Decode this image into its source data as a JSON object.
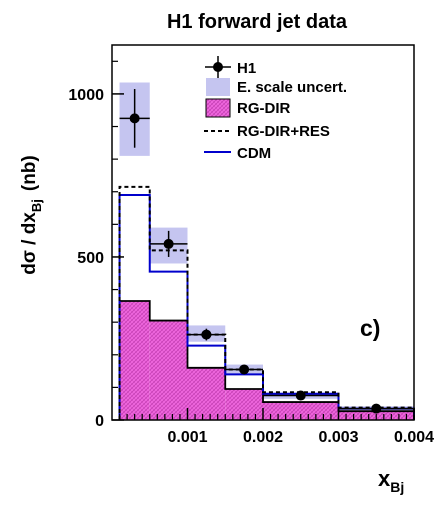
{
  "chart_data": {
    "type": "histogram",
    "title": "H1 forward jet data",
    "ylabel_main": "dσ / dx",
    "ylabel_sub": "Bj",
    "ylabel_unit": "(nb)",
    "xlabel_main": "x",
    "xlabel_sub": "Bj",
    "panel_label": "c)",
    "xlim": [
      0,
      0.004
    ],
    "ylim": [
      0,
      1150
    ],
    "x_ticks": [
      {
        "value": 0.001,
        "label": "0.001"
      },
      {
        "value": 0.002,
        "label": "0.002"
      },
      {
        "value": 0.003,
        "label": "0.003"
      },
      {
        "value": 0.004,
        "label": "0.004"
      }
    ],
    "y_ticks": [
      {
        "value": 0,
        "label": "0"
      },
      {
        "value": 500,
        "label": "500"
      },
      {
        "value": 1000,
        "label": "1000"
      }
    ],
    "bin_edges": [
      0.0001,
      0.0005,
      0.001,
      0.0015,
      0.002,
      0.003,
      0.004
    ],
    "data_points": {
      "name": "H1",
      "x": [
        0.0003,
        0.00075,
        0.00125,
        0.00175,
        0.0025,
        0.0035
      ],
      "y": [
        925,
        540,
        262,
        155,
        75,
        35
      ],
      "stat_err": [
        90,
        40,
        18,
        10,
        5,
        3
      ]
    },
    "escale_band": {
      "name": "E. scale uncert.",
      "lo": [
        810,
        480,
        240,
        140,
        65,
        28
      ],
      "hi": [
        1035,
        590,
        290,
        170,
        85,
        42
      ],
      "color": "#c5c5f0"
    },
    "series": [
      {
        "name": "RG-DIR",
        "values": [
          365,
          305,
          160,
          95,
          55,
          27
        ],
        "color": "#ee66dd",
        "style": "hatched"
      },
      {
        "name": "RG-DIR+RES",
        "values": [
          715,
          520,
          262,
          155,
          85,
          38
        ],
        "color": "#000000",
        "style": "dashed"
      },
      {
        "name": "CDM",
        "values": [
          690,
          455,
          228,
          140,
          80,
          35
        ],
        "color": "#0000cc",
        "style": "solid"
      }
    ],
    "legend_position": "top-right"
  }
}
